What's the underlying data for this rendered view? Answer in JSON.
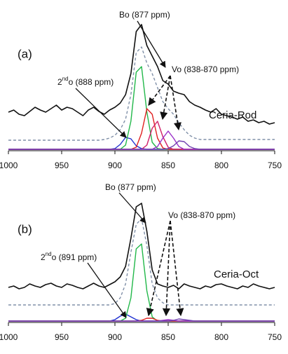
{
  "chart_data": [
    {
      "type": "line",
      "panel_label": "(a)",
      "sample": "Ceria-Rod",
      "annotations": [
        {
          "text": "Bo (877 ppm)"
        },
        {
          "text": "Vo (838-870 ppm)"
        },
        {
          "parts": [
            "2",
            "nd",
            "o (888 ppm)"
          ]
        }
      ],
      "x": [
        1000,
        995,
        990,
        985,
        980,
        975,
        970,
        965,
        960,
        955,
        950,
        945,
        940,
        935,
        930,
        925,
        920,
        915,
        910,
        905,
        900,
        895,
        890,
        885,
        880,
        875,
        870,
        865,
        860,
        855,
        850,
        845,
        840,
        835,
        830,
        825,
        820,
        815,
        810,
        805,
        800,
        795,
        790,
        785,
        780,
        775,
        770,
        765,
        760,
        755,
        750
      ],
      "xlim": [
        1000,
        750
      ],
      "xticks": [
        1000,
        950,
        900,
        850,
        800,
        750
      ],
      "ylim": [
        0,
        190
      ],
      "series": [
        {
          "color": "#111111",
          "style": "solid",
          "values": [
            55,
            58,
            52,
            50,
            56,
            62,
            58,
            55,
            60,
            65,
            58,
            62,
            60,
            55,
            50,
            58,
            62,
            56,
            52,
            58,
            62,
            68,
            80,
            110,
            170,
            180,
            150,
            135,
            120,
            100,
            95,
            85,
            82,
            80,
            70,
            65,
            62,
            58,
            55,
            60,
            52,
            50,
            48,
            45,
            48,
            42,
            44,
            40,
            42,
            38,
            40
          ]
        },
        {
          "color": "#8090a8",
          "style": "dashed",
          "values": [
            15,
            15,
            15,
            15,
            15,
            15,
            15,
            15,
            15,
            15,
            15,
            15,
            15,
            15,
            15,
            15,
            15,
            15,
            16,
            18,
            22,
            30,
            45,
            80,
            140,
            148,
            125,
            110,
            90,
            70,
            60,
            52,
            40,
            30,
            22,
            18,
            16,
            16,
            16,
            16,
            16,
            16,
            16,
            16,
            16,
            16,
            16,
            16,
            16,
            16,
            16
          ]
        },
        {
          "color": "#2030d0",
          "style": "solid",
          "values": [
            2,
            2,
            2,
            2,
            2,
            2,
            2,
            2,
            2,
            2,
            2,
            2,
            2,
            2,
            2,
            2,
            2,
            2,
            2,
            2,
            3,
            9,
            19,
            17,
            7,
            3,
            2,
            2,
            2,
            2,
            2,
            2,
            2,
            2,
            2,
            2,
            2,
            2,
            2,
            2,
            2,
            2,
            2,
            2,
            2,
            2,
            2,
            2,
            2,
            2,
            2
          ]
        },
        {
          "color": "#22b84a",
          "style": "solid",
          "values": [
            2,
            2,
            2,
            2,
            2,
            2,
            2,
            2,
            2,
            2,
            2,
            2,
            2,
            2,
            2,
            2,
            2,
            2,
            2,
            2,
            2,
            2,
            8,
            42,
            112,
            120,
            55,
            12,
            3,
            2,
            2,
            2,
            2,
            2,
            2,
            2,
            2,
            2,
            2,
            2,
            2,
            2,
            2,
            2,
            2,
            2,
            2,
            2,
            2,
            2,
            2
          ]
        },
        {
          "color": "#e02020",
          "style": "solid",
          "values": [
            2,
            2,
            2,
            2,
            2,
            2,
            2,
            2,
            2,
            2,
            2,
            2,
            2,
            2,
            2,
            2,
            2,
            2,
            2,
            2,
            2,
            2,
            2,
            2,
            5,
            25,
            60,
            52,
            18,
            4,
            2,
            2,
            2,
            2,
            2,
            2,
            2,
            2,
            2,
            2,
            2,
            2,
            2,
            2,
            2,
            2,
            2,
            2,
            2,
            2,
            2
          ]
        },
        {
          "color": "#d0206a",
          "style": "solid",
          "values": [
            2,
            2,
            2,
            2,
            2,
            2,
            2,
            2,
            2,
            2,
            2,
            2,
            2,
            2,
            2,
            2,
            2,
            2,
            2,
            2,
            2,
            2,
            2,
            2,
            2,
            2,
            8,
            32,
            42,
            20,
            5,
            2,
            2,
            2,
            2,
            2,
            2,
            2,
            2,
            2,
            2,
            2,
            2,
            2,
            2,
            2,
            2,
            2,
            2,
            2,
            2
          ]
        },
        {
          "color": "#9a30c8",
          "style": "solid",
          "values": [
            2,
            2,
            2,
            2,
            2,
            2,
            2,
            2,
            2,
            2,
            2,
            2,
            2,
            2,
            2,
            2,
            2,
            2,
            2,
            2,
            2,
            2,
            2,
            2,
            2,
            2,
            2,
            2,
            6,
            18,
            28,
            18,
            6,
            2,
            2,
            2,
            2,
            2,
            2,
            2,
            2,
            2,
            2,
            2,
            2,
            2,
            2,
            2,
            2,
            2,
            2
          ]
        },
        {
          "color": "#7040b0",
          "style": "solid",
          "values": [
            2,
            2,
            2,
            2,
            2,
            2,
            2,
            2,
            2,
            2,
            2,
            2,
            2,
            2,
            2,
            2,
            2,
            2,
            2,
            2,
            2,
            2,
            2,
            2,
            2,
            2,
            2,
            2,
            2,
            2,
            3,
            7,
            14,
            13,
            6,
            3,
            2,
            2,
            2,
            2,
            2,
            2,
            2,
            2,
            2,
            2,
            2,
            2,
            2,
            2,
            2
          ]
        }
      ]
    },
    {
      "type": "line",
      "panel_label": "(b)",
      "sample": "Ceria-Oct",
      "annotations": [
        {
          "text": "Bo (877 ppm)"
        },
        {
          "text": "Vo (838-870 ppm)"
        },
        {
          "parts": [
            "2",
            "nd",
            "o (891 ppm)"
          ]
        }
      ],
      "x": [
        1000,
        995,
        990,
        985,
        980,
        975,
        970,
        965,
        960,
        955,
        950,
        945,
        940,
        935,
        930,
        925,
        920,
        915,
        910,
        905,
        900,
        895,
        890,
        885,
        880,
        875,
        870,
        865,
        860,
        855,
        850,
        845,
        840,
        835,
        830,
        825,
        820,
        815,
        810,
        805,
        800,
        795,
        790,
        785,
        780,
        775,
        770,
        765,
        760,
        755,
        750
      ],
      "xlim": [
        1000,
        750
      ],
      "xticks": [
        1000,
        950,
        900,
        850,
        800,
        750
      ],
      "ylim": [
        0,
        190
      ],
      "series": [
        {
          "color": "#111111",
          "style": "solid",
          "values": [
            50,
            52,
            48,
            50,
            55,
            52,
            50,
            54,
            56,
            52,
            50,
            55,
            53,
            50,
            48,
            52,
            56,
            52,
            50,
            54,
            58,
            65,
            80,
            120,
            165,
            170,
            130,
            75,
            55,
            52,
            50,
            53,
            48,
            55,
            52,
            50,
            48,
            52,
            50,
            54,
            55,
            52,
            50,
            48,
            52,
            50,
            55,
            52,
            50,
            48,
            50
          ]
        },
        {
          "color": "#8090a8",
          "style": "dashed",
          "values": [
            25,
            25,
            25,
            25,
            25,
            25,
            25,
            25,
            25,
            25,
            25,
            25,
            25,
            25,
            25,
            25,
            25,
            25,
            25,
            25,
            27,
            35,
            55,
            100,
            140,
            148,
            110,
            55,
            35,
            28,
            25,
            25,
            25,
            25,
            25,
            25,
            25,
            25,
            25,
            25,
            25,
            25,
            25,
            25,
            25,
            25,
            25,
            25,
            25,
            25,
            25
          ]
        },
        {
          "color": "#2030d0",
          "style": "solid",
          "values": [
            2,
            2,
            2,
            2,
            2,
            2,
            2,
            2,
            2,
            2,
            2,
            2,
            2,
            2,
            2,
            2,
            2,
            2,
            2,
            2,
            4,
            9,
            12,
            8,
            4,
            2,
            2,
            2,
            2,
            2,
            2,
            2,
            2,
            2,
            2,
            2,
            2,
            2,
            2,
            2,
            2,
            2,
            2,
            2,
            2,
            2,
            2,
            2,
            2,
            2,
            2
          ]
        },
        {
          "color": "#22b84a",
          "style": "solid",
          "values": [
            2,
            2,
            2,
            2,
            2,
            2,
            2,
            2,
            2,
            2,
            2,
            2,
            2,
            2,
            2,
            2,
            2,
            2,
            2,
            2,
            2,
            2,
            6,
            35,
            105,
            112,
            45,
            8,
            2,
            2,
            2,
            2,
            2,
            2,
            2,
            2,
            2,
            2,
            2,
            2,
            2,
            2,
            2,
            2,
            2,
            2,
            2,
            2,
            2,
            2,
            2
          ]
        },
        {
          "color": "#e02020",
          "style": "solid",
          "values": [
            2,
            2,
            2,
            2,
            2,
            2,
            2,
            2,
            2,
            2,
            2,
            2,
            2,
            2,
            2,
            2,
            2,
            2,
            2,
            2,
            2,
            2,
            2,
            2,
            2,
            3,
            6,
            6,
            3,
            2,
            2,
            2,
            2,
            2,
            2,
            2,
            2,
            2,
            2,
            2,
            2,
            2,
            2,
            2,
            2,
            2,
            2,
            2,
            2,
            2,
            2
          ]
        },
        {
          "color": "#9a30c8",
          "style": "solid",
          "values": [
            2,
            2,
            2,
            2,
            2,
            2,
            2,
            2,
            2,
            2,
            2,
            2,
            2,
            2,
            2,
            2,
            2,
            2,
            2,
            2,
            2,
            2,
            2,
            2,
            2,
            2,
            2,
            2,
            2,
            3,
            4,
            3,
            2,
            2,
            2,
            2,
            2,
            2,
            2,
            2,
            2,
            2,
            2,
            2,
            2,
            2,
            2,
            2,
            2,
            2,
            2
          ]
        },
        {
          "color": "#7040b0",
          "style": "solid",
          "values": [
            2,
            2,
            2,
            2,
            2,
            2,
            2,
            2,
            2,
            2,
            2,
            2,
            2,
            2,
            2,
            2,
            2,
            2,
            2,
            2,
            2,
            2,
            2,
            2,
            2,
            2,
            2,
            2,
            2,
            2,
            2,
            3,
            5,
            4,
            3,
            2,
            2,
            2,
            2,
            2,
            2,
            2,
            2,
            2,
            2,
            2,
            2,
            2,
            2,
            2,
            2
          ]
        }
      ]
    }
  ]
}
